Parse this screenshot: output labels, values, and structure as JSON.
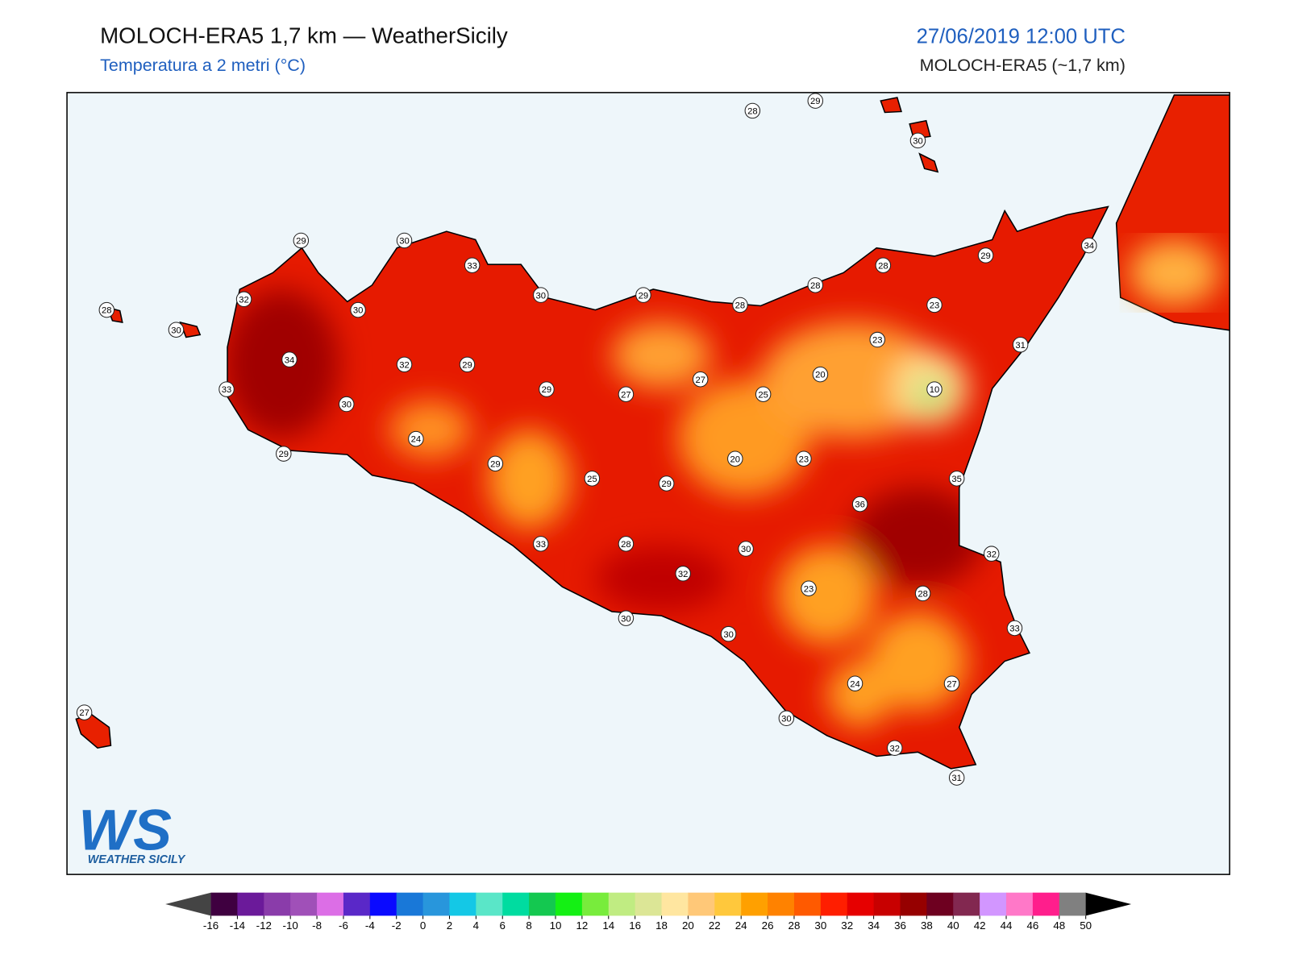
{
  "header": {
    "title": "MOLOCH-ERA5 1,7 km — WeatherSicily",
    "subtitle": "Temperatura a 2 metri (°C)",
    "datetime": "27/06/2019 12:00 UTC",
    "model": "MOLOCH-ERA5 (~1,7 km)"
  },
  "stations": [
    28,
    29,
    30,
    28,
    30,
    29,
    30,
    33,
    32,
    30,
    30,
    29,
    28,
    28,
    28,
    29,
    34,
    23,
    23,
    31,
    34,
    32,
    29,
    33,
    30,
    29,
    27,
    27,
    25,
    20,
    10,
    24,
    29,
    29,
    25,
    29,
    20,
    23,
    35,
    36,
    32,
    33,
    28,
    30,
    32,
    23,
    28,
    33,
    30,
    30,
    24,
    27,
    27,
    30,
    32,
    31
  ],
  "colorbar": {
    "ticks": [
      -16,
      -14,
      -12,
      -10,
      -8,
      -6,
      -4,
      -2,
      0,
      2,
      4,
      6,
      8,
      10,
      12,
      14,
      16,
      18,
      20,
      22,
      24,
      26,
      28,
      30,
      32,
      34,
      36,
      38,
      40,
      42,
      44,
      46,
      48,
      50
    ],
    "colors": [
      "#3f0040",
      "#6b1a9a",
      "#8a3caa",
      "#a050b8",
      "#dc6ee6",
      "#5a28c8",
      "#0a0aff",
      "#1978d8",
      "#2896dc",
      "#14c8e6",
      "#5ae6c8",
      "#00dca0",
      "#14c850",
      "#14f014",
      "#78ec3c",
      "#c0ec82",
      "#dce696",
      "#ffe6a0",
      "#ffc878",
      "#ffc83c",
      "#ffa000",
      "#ff8200",
      "#ff5a00",
      "#ff1e00",
      "#e60000",
      "#c80000",
      "#960000",
      "#6e0020",
      "#822850",
      "#d296ff",
      "#ff78c8",
      "#ff1e8c",
      "#808080",
      "#3c3c3c"
    ],
    "under_color": "#444444",
    "over_color": "#000000"
  },
  "logo": {
    "mark": "WS",
    "name": "WEATHER SICILY"
  }
}
